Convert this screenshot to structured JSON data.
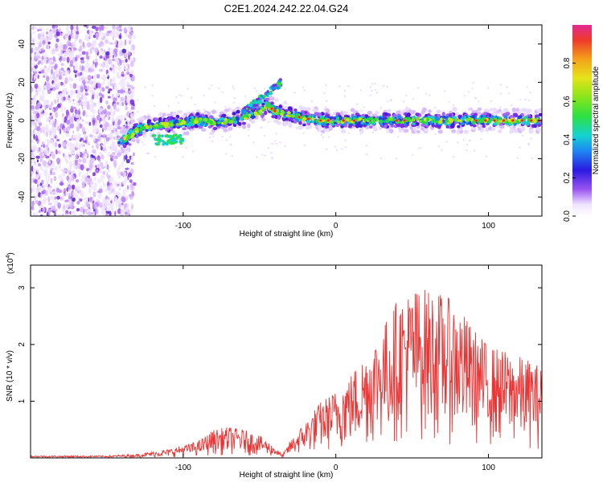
{
  "title": "C2E1.2024.242.22.04.G24",
  "chart_data": [
    {
      "type": "heatmap",
      "xlabel": "Height of straight line (km)",
      "ylabel": "Frequency (Hz)",
      "xlim": [
        -200,
        135
      ],
      "ylim": [
        -50,
        50
      ],
      "xticks": [
        -100,
        0,
        100
      ],
      "yticks": [
        -40,
        -20,
        0,
        20,
        40
      ],
      "colorbar": {
        "label": "Normalized spectral amplitude",
        "range": [
          0.0,
          1.0
        ],
        "ticks": [
          "0.0",
          "0.2",
          "0.4",
          "0.6",
          "0.8"
        ]
      },
      "ridge_trace": {
        "x": [
          -142,
          -130,
          -120,
          -110,
          -100,
          -90,
          -80,
          -70,
          -60,
          -50,
          -45,
          -40,
          -30,
          -20,
          -10,
          0,
          20,
          40,
          60,
          80,
          100,
          120,
          135
        ],
        "y": [
          -12,
          -5,
          -3,
          -2,
          -1,
          0,
          -1,
          0,
          2,
          4,
          8,
          5,
          3,
          1,
          0,
          0,
          0,
          0,
          0,
          0,
          0,
          0,
          0
        ]
      }
    },
    {
      "type": "line",
      "xlabel": "Height of straight line (km)",
      "ylabel": "SNR (10 * v/v)",
      "y_multiplier": "(x10",
      "y_multiplier_exp": "4",
      "y_multiplier_close": ")",
      "xlim": [
        -200,
        135
      ],
      "ylim": [
        0,
        3.4
      ],
      "xticks": [
        -100,
        0,
        100
      ],
      "yticks": [
        1,
        2,
        3
      ],
      "series": [
        {
          "color": "#ee3333",
          "envelope": {
            "x": [
              -200,
              -150,
              -130,
              -110,
              -90,
              -80,
              -70,
              -60,
              -50,
              -40,
              -35,
              -30,
              -20,
              -10,
              0,
              10,
              20,
              30,
              40,
              50,
              60,
              70,
              80,
              90,
              100,
              110,
              120,
              130,
              135
            ],
            "y": [
              0.03,
              0.04,
              0.07,
              0.15,
              0.3,
              0.5,
              0.55,
              0.5,
              0.4,
              0.2,
              0.05,
              0.3,
              0.65,
              1.0,
              1.2,
              1.5,
              1.9,
              2.3,
              2.8,
              3.0,
              3.0,
              2.9,
              2.7,
              2.3,
              2.0,
              1.9,
              1.8,
              1.7,
              1.6
            ]
          }
        }
      ]
    }
  ]
}
